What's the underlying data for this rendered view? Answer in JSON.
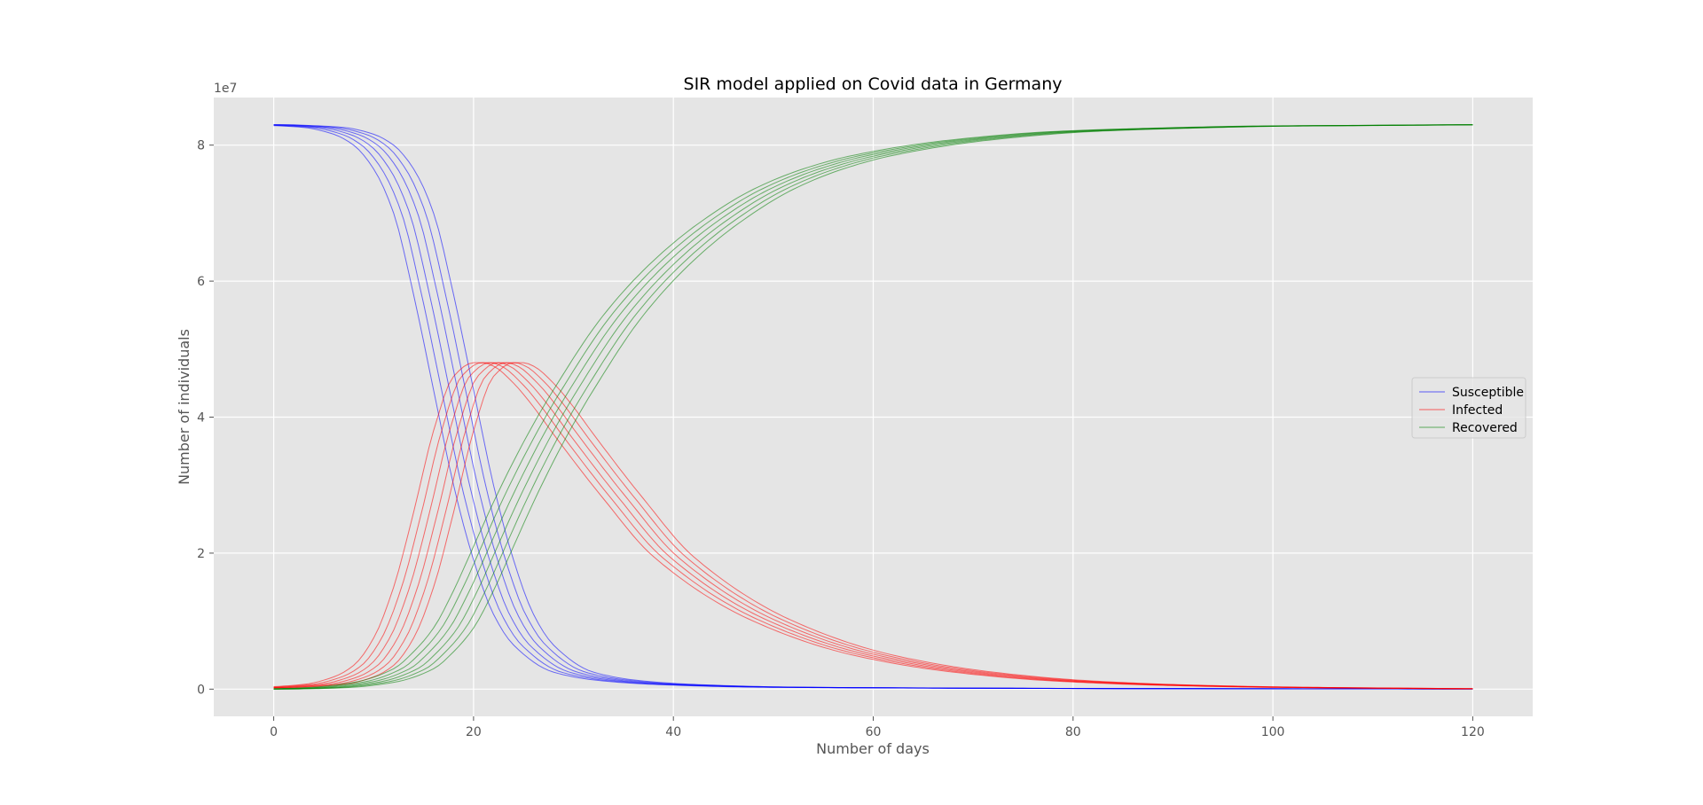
{
  "chart_data": {
    "type": "line",
    "title": "SIR model applied on Covid data in Germany",
    "xlabel": "Number of days",
    "ylabel": "Number of individuals",
    "y_offset_text": "1e7",
    "xlim": [
      -6,
      126
    ],
    "ylim": [
      -4000000,
      87000000
    ],
    "x_ticks": [
      0,
      20,
      40,
      60,
      80,
      100,
      120
    ],
    "y_ticks": [
      0,
      20000000,
      40000000,
      60000000,
      80000000
    ],
    "y_tick_labels": [
      "0",
      "2",
      "4",
      "6",
      "8"
    ],
    "grid": true,
    "legend": "center-right",
    "colors": {
      "Susceptible": "#0000ff",
      "Infected": "#ff0000",
      "Recovered": "#008000",
      "background": "#e5e5e5",
      "grid": "#ffffff"
    },
    "series": [
      {
        "name": "Susceptible",
        "family": "S",
        "x": [
          0,
          5,
          8,
          10,
          12,
          14,
          16,
          18,
          20,
          22,
          24,
          26,
          30,
          35,
          40,
          50,
          60,
          80,
          100,
          120
        ],
        "y": [
          83000000,
          82600000,
          81600000,
          80000000,
          76500000,
          70000000,
          58000000,
          44000000,
          30000000,
          19000000,
          11000000,
          6500000,
          2500000,
          1200000,
          700000,
          300000,
          200000,
          100000,
          50000,
          30000
        ]
      },
      {
        "name": "Infected",
        "family": "I",
        "x": [
          0,
          5,
          8,
          10,
          12,
          14,
          16,
          18,
          20,
          22,
          23,
          24,
          26,
          28,
          30,
          35,
          40,
          50,
          60,
          70,
          80,
          90,
          100,
          120
        ],
        "y": [
          200000,
          700000,
          1800000,
          3500000,
          7500000,
          15000000,
          26000000,
          38000000,
          46000000,
          48000000,
          48000000,
          47500000,
          45000000,
          41500000,
          37500000,
          28000000,
          19500000,
          10000000,
          5000000,
          2500000,
          1200000,
          600000,
          300000,
          50000
        ]
      },
      {
        "name": "Recovered",
        "family": "R",
        "x": [
          0,
          5,
          10,
          14,
          16,
          18,
          20,
          22,
          24,
          26,
          28,
          30,
          35,
          40,
          45,
          50,
          55,
          60,
          70,
          80,
          90,
          100,
          110,
          120
        ],
        "y": [
          0,
          200000,
          1000000,
          3000000,
          5500000,
          9000000,
          14500000,
          21000000,
          27500000,
          33500000,
          39000000,
          44000000,
          55000000,
          63000000,
          69000000,
          73500000,
          76500000,
          78500000,
          80800000,
          82000000,
          82500000,
          82800000,
          82900000,
          83000000
        ]
      }
    ],
    "runs": 6,
    "run_shift_days": [
      -2,
      -1.2,
      -0.4,
      0.4,
      1.2,
      2
    ]
  }
}
